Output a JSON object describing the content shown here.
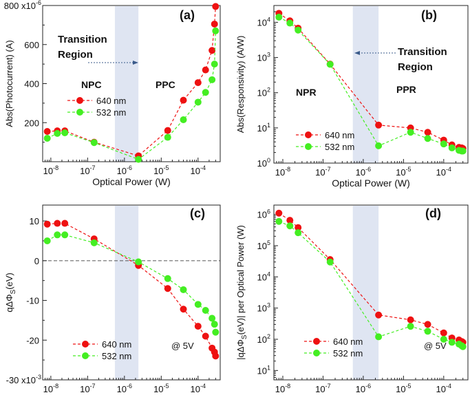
{
  "colors": {
    "red": "#ee1111",
    "green": "#44ee22",
    "band": "#dfe5f2"
  },
  "chart_data": [
    {
      "panel": "a",
      "type": "scatter",
      "label": "(a)",
      "xscale": "log",
      "xlim": [
        6e-09,
        0.0004
      ],
      "yscale": "linear",
      "ylim": [
        0,
        800
      ],
      "xlabel": "Optical Power (W)",
      "ylabel": "Abs(Photocurrent) (A)",
      "yticks": [
        {
          "v": 200,
          "label": "200"
        },
        {
          "v": 400,
          "label": "400"
        },
        {
          "v": 600,
          "label": "600"
        },
        {
          "v": 800,
          "label": "800 x10"
        }
      ],
      "ytick_exponent": "-6",
      "transition_band": [
        5.5e-07,
        2.4e-06
      ],
      "annotations": [
        {
          "id": "transition",
          "text": "Transition Region",
          "lines": [
            "Transition",
            "Region"
          ],
          "arrow": "right"
        },
        {
          "id": "left",
          "text": "NPC"
        },
        {
          "id": "right",
          "text": "PPC"
        }
      ],
      "legend": {
        "position": "middle-left",
        "entries": [
          "640 nm",
          "532 nm"
        ]
      },
      "series": [
        {
          "name": "640 nm",
          "color": "red",
          "x": [
            8e-09,
            1.5e-08,
            2.4e-08,
            1.5e-07,
            2.4e-06,
            1.5e-05,
            4e-05,
            0.0001,
            0.00016,
            0.00024,
            0.00028,
            0.0003
          ],
          "y": [
            155,
            158,
            158,
            100,
            30,
            160,
            315,
            405,
            470,
            570,
            705,
            795
          ]
        },
        {
          "name": "532 nm",
          "color": "green",
          "x": [
            8e-09,
            1.5e-08,
            2.4e-08,
            1.5e-07,
            2.4e-06,
            1.5e-05,
            4e-05,
            0.0001,
            0.00016,
            0.00024,
            0.00028,
            0.0003
          ],
          "y": [
            120,
            145,
            148,
            98,
            12,
            125,
            215,
            305,
            355,
            420,
            500,
            670
          ]
        }
      ]
    },
    {
      "panel": "b",
      "type": "scatter",
      "label": "(b)",
      "xscale": "log",
      "xlim": [
        6e-09,
        0.0004
      ],
      "yscale": "log",
      "ylim": [
        1,
        30000
      ],
      "xlabel": "Optical Power (W)",
      "ylabel": "Abs(Responsivity) (A/W)",
      "yticks": [
        {
          "v": 1,
          "label": "10",
          "exp": "0"
        },
        {
          "v": 10,
          "label": "10",
          "exp": "1"
        },
        {
          "v": 100,
          "label": "10",
          "exp": "2"
        },
        {
          "v": 1000,
          "label": "10",
          "exp": "3"
        },
        {
          "v": 10000,
          "label": "10",
          "exp": "4"
        }
      ],
      "transition_band": [
        5.5e-07,
        2.4e-06
      ],
      "annotations": [
        {
          "id": "transition",
          "text": "Transition Region",
          "lines": [
            "Transition",
            "Region"
          ],
          "arrow": "left"
        },
        {
          "id": "left",
          "text": "NPR"
        },
        {
          "id": "right",
          "text": "PPR"
        }
      ],
      "legend": {
        "position": "bottom-left",
        "entries": [
          "640 nm",
          "532 nm"
        ]
      },
      "series": [
        {
          "name": "640 nm",
          "color": "red",
          "x": [
            8e-09,
            1.5e-08,
            2.4e-08,
            1.5e-07,
            2.4e-06,
            1.5e-05,
            4e-05,
            0.0001,
            0.00016,
            0.00024,
            0.00028,
            0.0003
          ],
          "y": [
            18000,
            11000,
            6800,
            650,
            12,
            10,
            7.5,
            4.5,
            3.3,
            2.8,
            2.7,
            2.6
          ]
        },
        {
          "name": "532 nm",
          "color": "green",
          "x": [
            8e-09,
            1.5e-08,
            2.4e-08,
            1.5e-07,
            2.4e-06,
            1.5e-05,
            4e-05,
            0.0001,
            0.00016,
            0.00024,
            0.00028,
            0.0003
          ],
          "y": [
            14000,
            9500,
            6000,
            640,
            3.1,
            7.5,
            5.0,
            3.5,
            2.7,
            2.3,
            2.2,
            2.2
          ]
        }
      ]
    },
    {
      "panel": "c",
      "type": "scatter",
      "label": "(c)",
      "xscale": "log",
      "xlim": [
        6e-09,
        0.0004
      ],
      "yscale": "linear",
      "ylim": [
        -30,
        14
      ],
      "xlabel": "Optical Power (W)",
      "ylabel": "qΔΦS(eV)",
      "ylabel_parts": [
        "qΔΦ",
        "S",
        "(eV)"
      ],
      "yticks": [
        {
          "v": 10,
          "label": "10"
        },
        {
          "v": 0,
          "label": "0"
        },
        {
          "v": -10,
          "label": "-10"
        },
        {
          "v": -20,
          "label": "-20"
        },
        {
          "v": -30,
          "label": "-30 x10"
        }
      ],
      "ytick_exponent": "-3",
      "zero_line": true,
      "transition_band": [
        5.5e-07,
        2.4e-06
      ],
      "annotations": [
        {
          "id": "cond",
          "text": "@ 5V"
        }
      ],
      "legend": {
        "position": "bottom-left",
        "entries": [
          "640 nm",
          "532 nm"
        ]
      },
      "series": [
        {
          "name": "640 nm",
          "color": "red",
          "x": [
            8e-09,
            1.5e-08,
            2.4e-08,
            1.5e-07,
            2.4e-06,
            1.5e-05,
            4e-05,
            0.0001,
            0.00016,
            0.00024,
            0.00028,
            0.0003
          ],
          "y": [
            9.2,
            9.4,
            9.4,
            5.5,
            -1.2,
            -7.0,
            -12.2,
            -16.5,
            -19.0,
            -22.0,
            -23.0,
            -24.0
          ]
        },
        {
          "name": "532 nm",
          "color": "green",
          "x": [
            8e-09,
            1.5e-08,
            2.4e-08,
            1.5e-07,
            2.4e-06,
            1.5e-05,
            4e-05,
            0.0001,
            0.00016,
            0.00024,
            0.00028,
            0.0003
          ],
          "y": [
            5.0,
            6.5,
            6.5,
            4.5,
            -0.3,
            -4.5,
            -7.3,
            -11.0,
            -12.5,
            -14.5,
            -16.0,
            -18.0
          ]
        }
      ]
    },
    {
      "panel": "d",
      "type": "scatter",
      "label": "(d)",
      "xscale": "log",
      "xlim": [
        6e-09,
        0.0004
      ],
      "yscale": "log",
      "ylim": [
        5,
        2000000
      ],
      "xlabel": "Optical Power (W)",
      "ylabel": "|qΔΦS(eV)| per Optical Power (W)",
      "ylabel_parts": [
        "|qΔΦ",
        "S",
        "(eV)| per Optical Power (W)"
      ],
      "yticks": [
        {
          "v": 10,
          "label": "10",
          "exp": "1"
        },
        {
          "v": 100,
          "label": "10",
          "exp": "2"
        },
        {
          "v": 1000,
          "label": "10",
          "exp": "3"
        },
        {
          "v": 10000,
          "label": "10",
          "exp": "4"
        },
        {
          "v": 100000,
          "label": "10",
          "exp": "5"
        },
        {
          "v": 1000000,
          "label": "10",
          "exp": "6"
        }
      ],
      "transition_band": [
        5.5e-07,
        2.4e-06
      ],
      "annotations": [
        {
          "id": "cond",
          "text": "@ 5V"
        }
      ],
      "legend": {
        "position": "bottom-left",
        "entries": [
          "640 nm",
          "532 nm"
        ]
      },
      "series": [
        {
          "name": "640 nm",
          "color": "red",
          "x": [
            8e-09,
            1.5e-08,
            2.4e-08,
            1.5e-07,
            2.4e-06,
            1.5e-05,
            4e-05,
            0.0001,
            0.00016,
            0.00024,
            0.00028,
            0.0003
          ],
          "y": [
            1100000,
            650000,
            380000,
            36000,
            600,
            420,
            300,
            160,
            110,
            95,
            85,
            80
          ]
        },
        {
          "name": "532 nm",
          "color": "green",
          "x": [
            8e-09,
            1.5e-08,
            2.4e-08,
            1.5e-07,
            2.4e-06,
            1.5e-05,
            4e-05,
            0.0001,
            0.00016,
            0.00024,
            0.00028,
            0.0003
          ],
          "y": [
            600000,
            430000,
            260000,
            30000,
            120,
            260,
            180,
            100,
            80,
            70,
            62,
            58
          ]
        }
      ]
    }
  ],
  "x_tick_labels": [
    {
      "v": 1e-08,
      "label": "10",
      "exp": "-8"
    },
    {
      "v": 1e-07,
      "label": "10",
      "exp": "-7"
    },
    {
      "v": 1e-06,
      "label": "10",
      "exp": "-6"
    },
    {
      "v": 1e-05,
      "label": "10",
      "exp": "-5"
    },
    {
      "v": 0.0001,
      "label": "10",
      "exp": "-4"
    }
  ]
}
